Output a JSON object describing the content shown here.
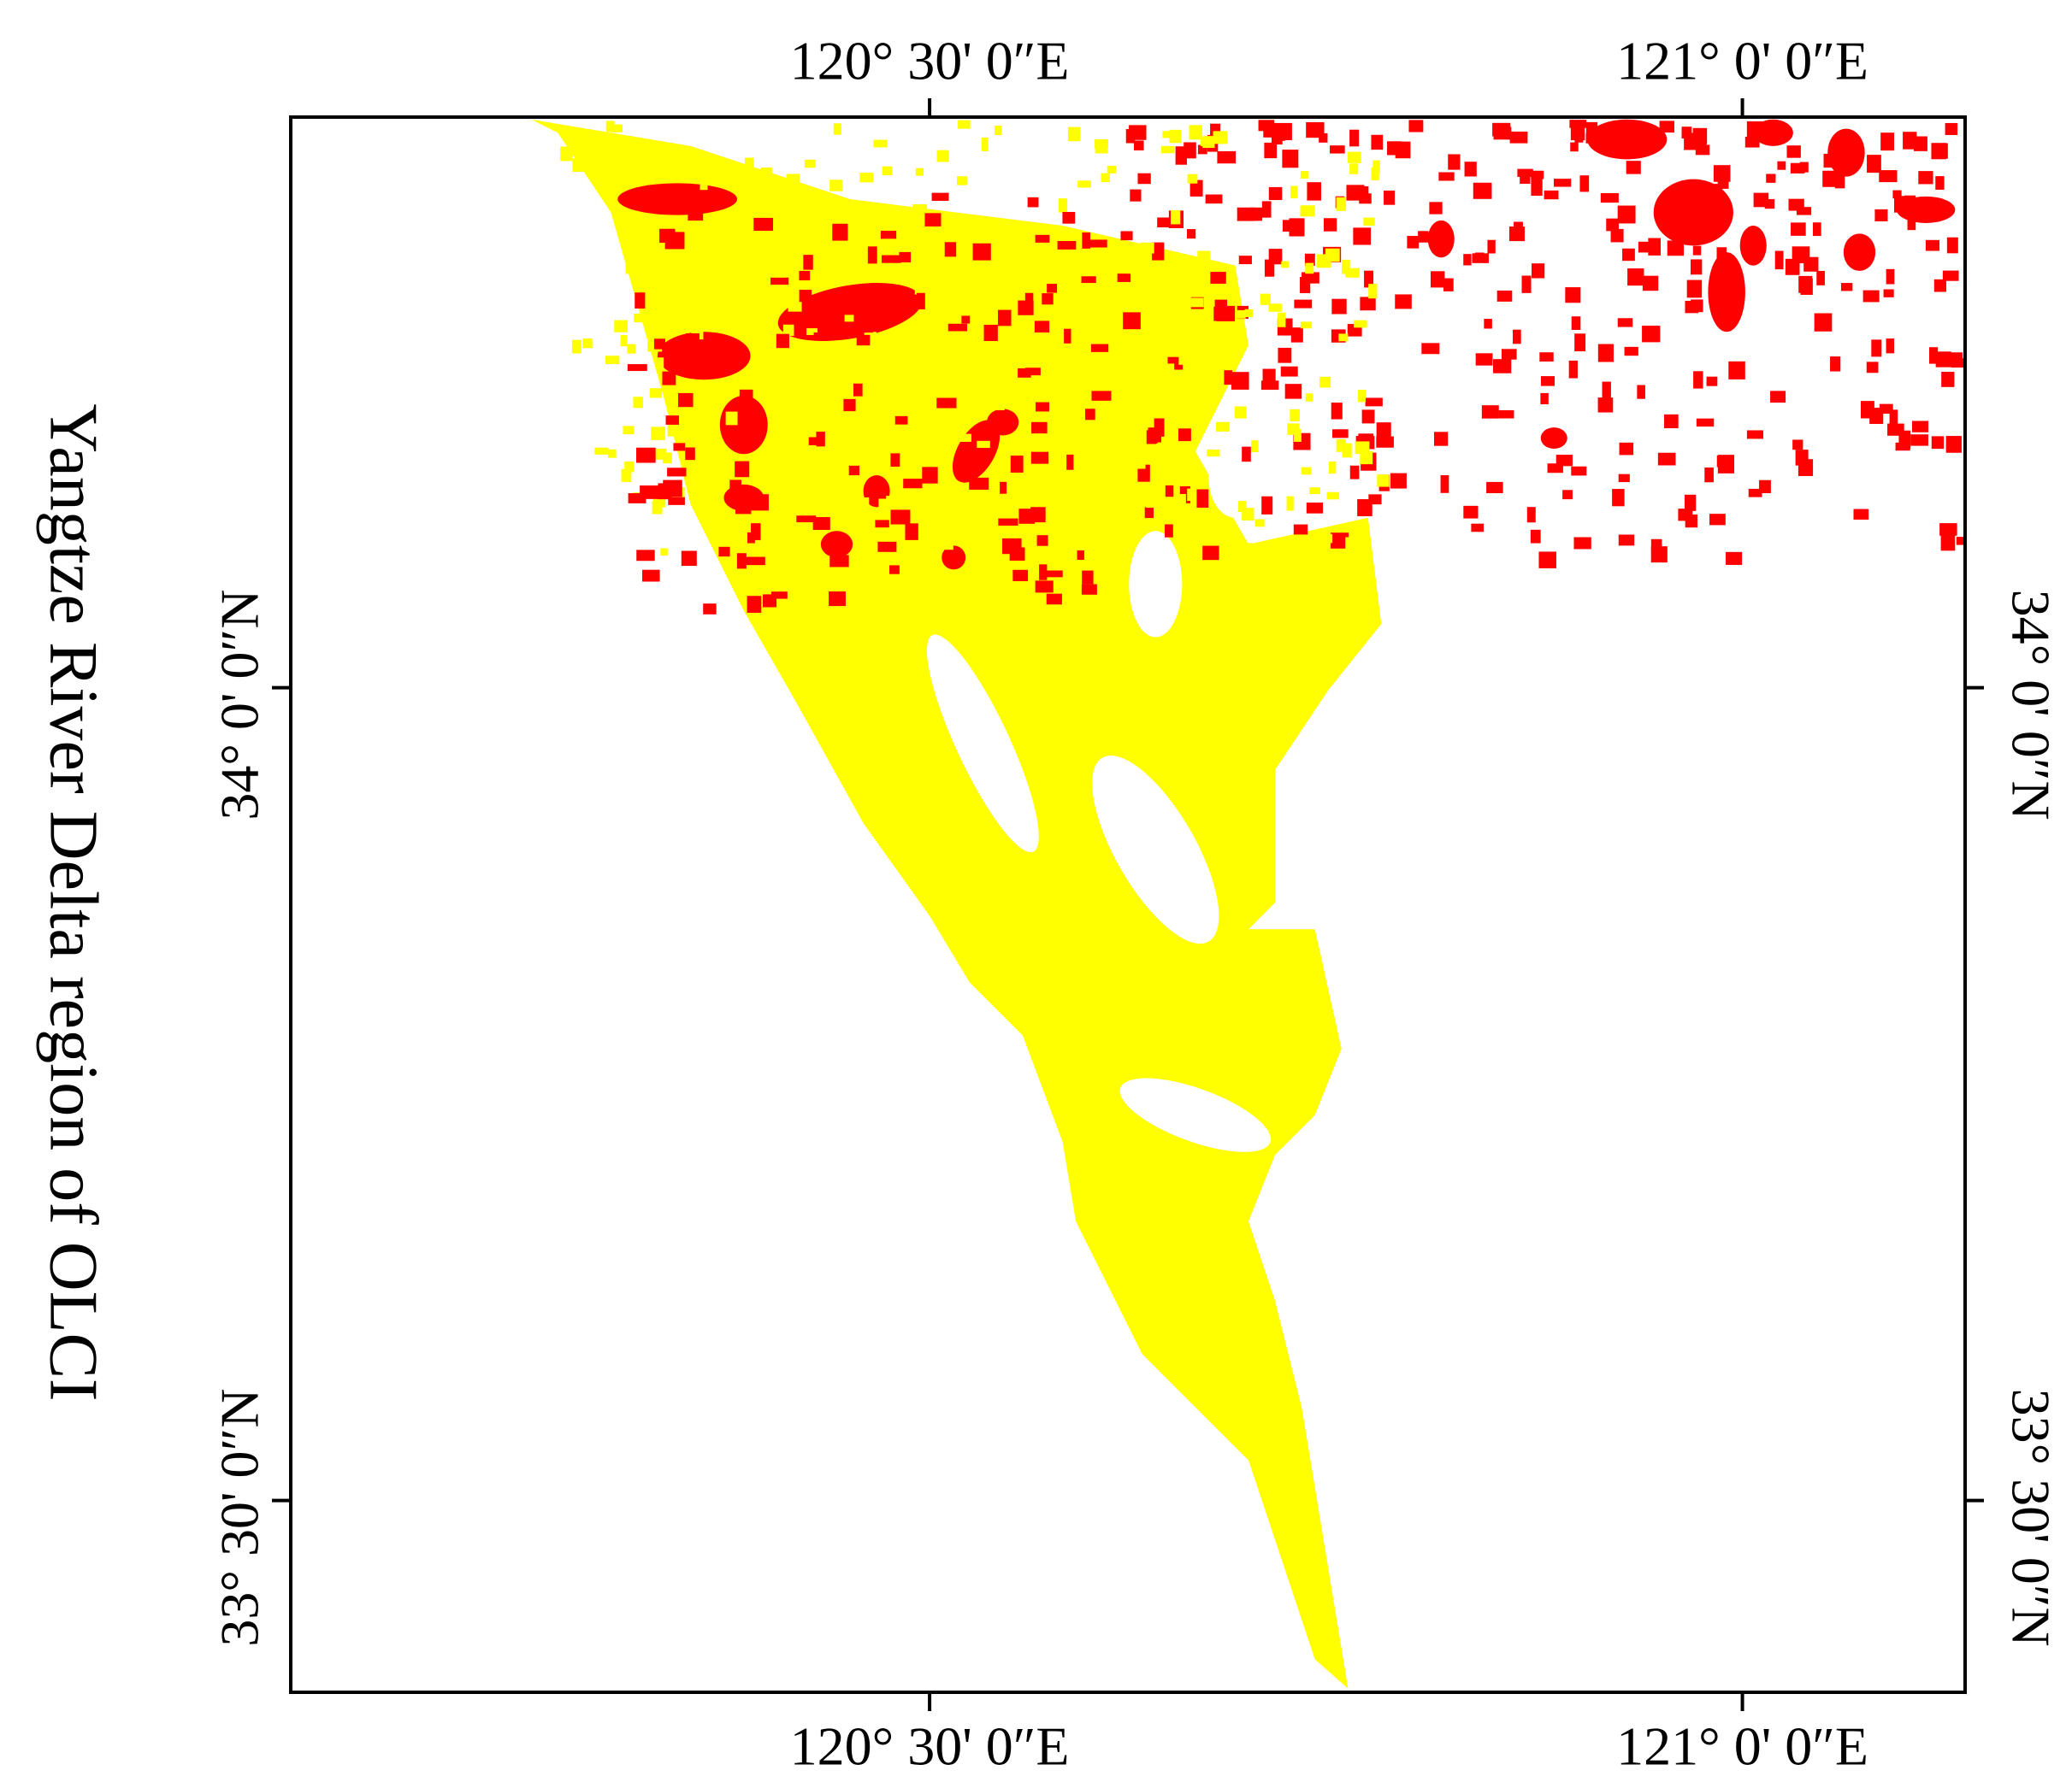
{
  "map": {
    "title": "Yangtze River Delta region of OLCI",
    "xlim": [
      120.107,
      121.137
    ],
    "ylim": [
      33.382,
      34.351
    ],
    "xticks": [
      {
        "value": 120.5,
        "label": "120° 30' 0″E"
      },
      {
        "value": 121,
        "label": "121° 0' 0″E"
      }
    ],
    "yticks": [
      {
        "value": 34,
        "label": "34° 0' 0″N"
      },
      {
        "value": 33.5,
        "label": "33° 30' 0″N"
      }
    ]
  }
}
